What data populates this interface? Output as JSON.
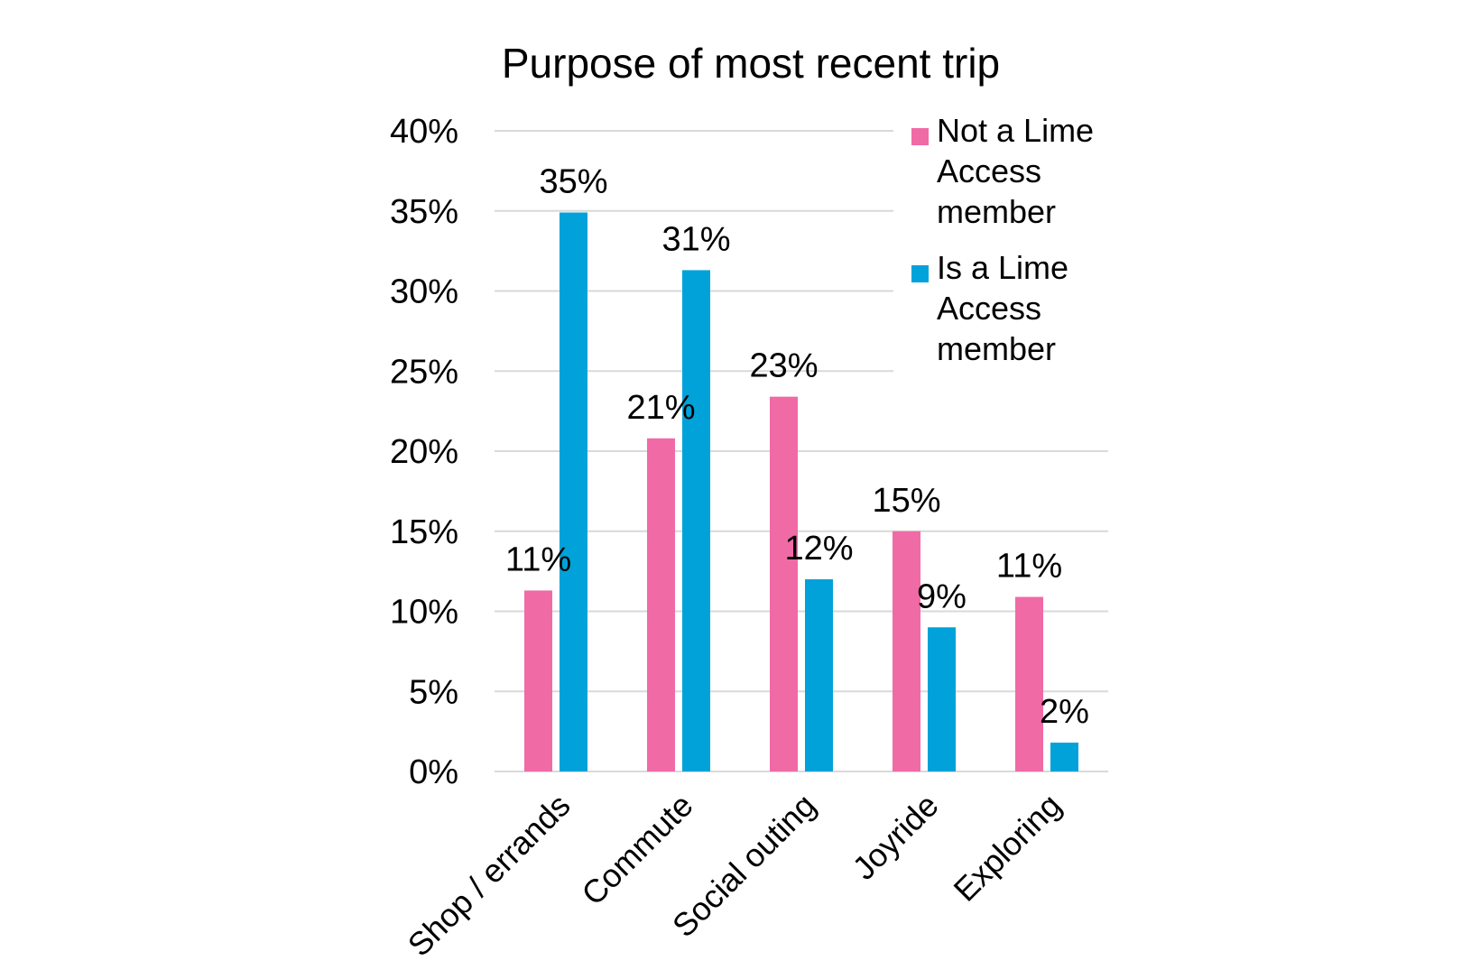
{
  "chart_data": {
    "type": "bar",
    "title": "Purpose of most recent trip",
    "xlabel": "",
    "ylabel": "",
    "categories": [
      "Shop / errands",
      "Commute",
      "Social outing",
      "Joyride",
      "Exploring"
    ],
    "series": [
      {
        "name": "Not a Lime Access member",
        "legend_lines": [
          "Not a Lime",
          "Access",
          "member"
        ],
        "color": "#f06aa6",
        "values": [
          11.3,
          20.8,
          23.4,
          15.0,
          10.9
        ],
        "labels": [
          "11%",
          "21%",
          "23%",
          "15%",
          "11%"
        ]
      },
      {
        "name": "Is a Lime Access member",
        "legend_lines": [
          "Is a Lime",
          "Access",
          "member"
        ],
        "color": "#00a2d9",
        "values": [
          34.9,
          31.3,
          12.0,
          9.0,
          1.8
        ],
        "labels": [
          "35%",
          "31%",
          "12%",
          "9%",
          "2%"
        ]
      }
    ],
    "ylim": [
      0,
      40
    ],
    "yticks": [
      0,
      5,
      10,
      15,
      20,
      25,
      30,
      35,
      40
    ],
    "ytick_labels": [
      "0%",
      "5%",
      "10%",
      "15%",
      "20%",
      "25%",
      "30%",
      "35%",
      "40%"
    ],
    "grid": true,
    "legend_position": "top-right"
  }
}
